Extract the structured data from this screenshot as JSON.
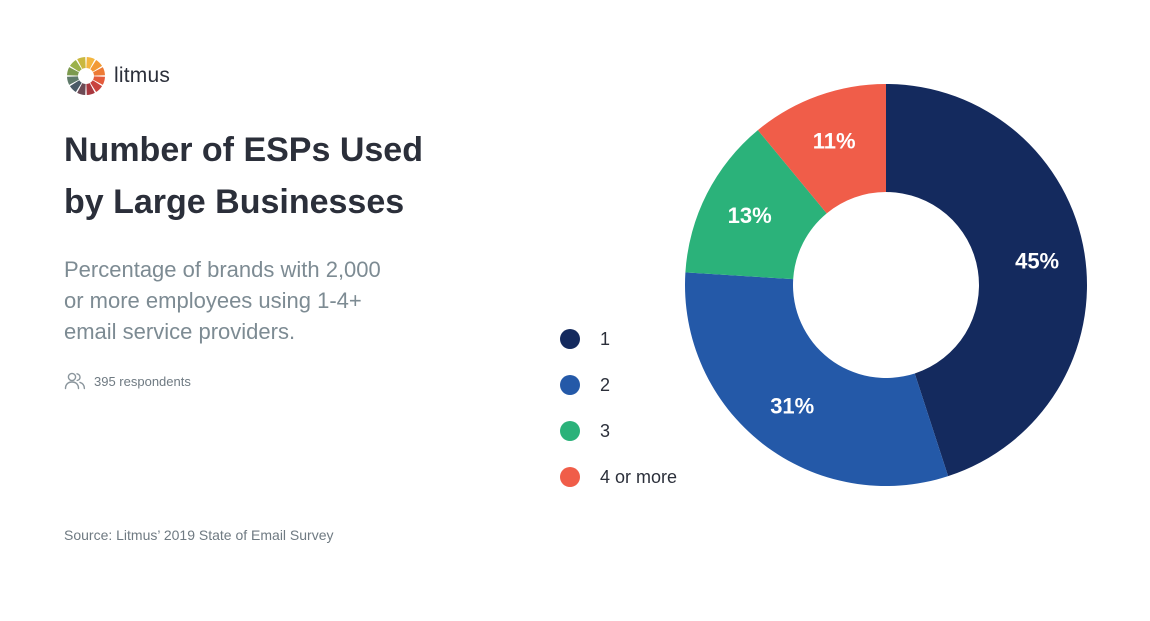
{
  "brand": {
    "name": "litmus",
    "logo_icon": "litmus-color-wheel-icon"
  },
  "title": {
    "line1": "Number of ESPs Used",
    "line2": "by Large Businesses"
  },
  "subtitle": {
    "line1": "Percentage of brands with 2,000",
    "line2": "or more employees using 1-4+",
    "line3": "email service providers."
  },
  "respondents": {
    "icon": "people-icon",
    "text": "395 respondents"
  },
  "source": "Source: Litmus’ 2019 State of Email Survey",
  "legend": [
    {
      "label": "1",
      "color": "#142a5e"
    },
    {
      "label": "2",
      "color": "#2459a8"
    },
    {
      "label": "3",
      "color": "#2bb27a"
    },
    {
      "label": "4 or more",
      "color": "#f05d49"
    }
  ],
  "chart_data": {
    "type": "pie",
    "donut": true,
    "categories": [
      "1",
      "2",
      "3",
      "4 or more"
    ],
    "values": [
      45,
      31,
      13,
      11
    ],
    "value_labels": [
      "45%",
      "31%",
      "13%",
      "11%"
    ],
    "colors": [
      "#142a5e",
      "#2459a8",
      "#2bb27a",
      "#f05d49"
    ],
    "start": "12 o'clock",
    "direction": "clockwise",
    "legend_position": "left"
  }
}
